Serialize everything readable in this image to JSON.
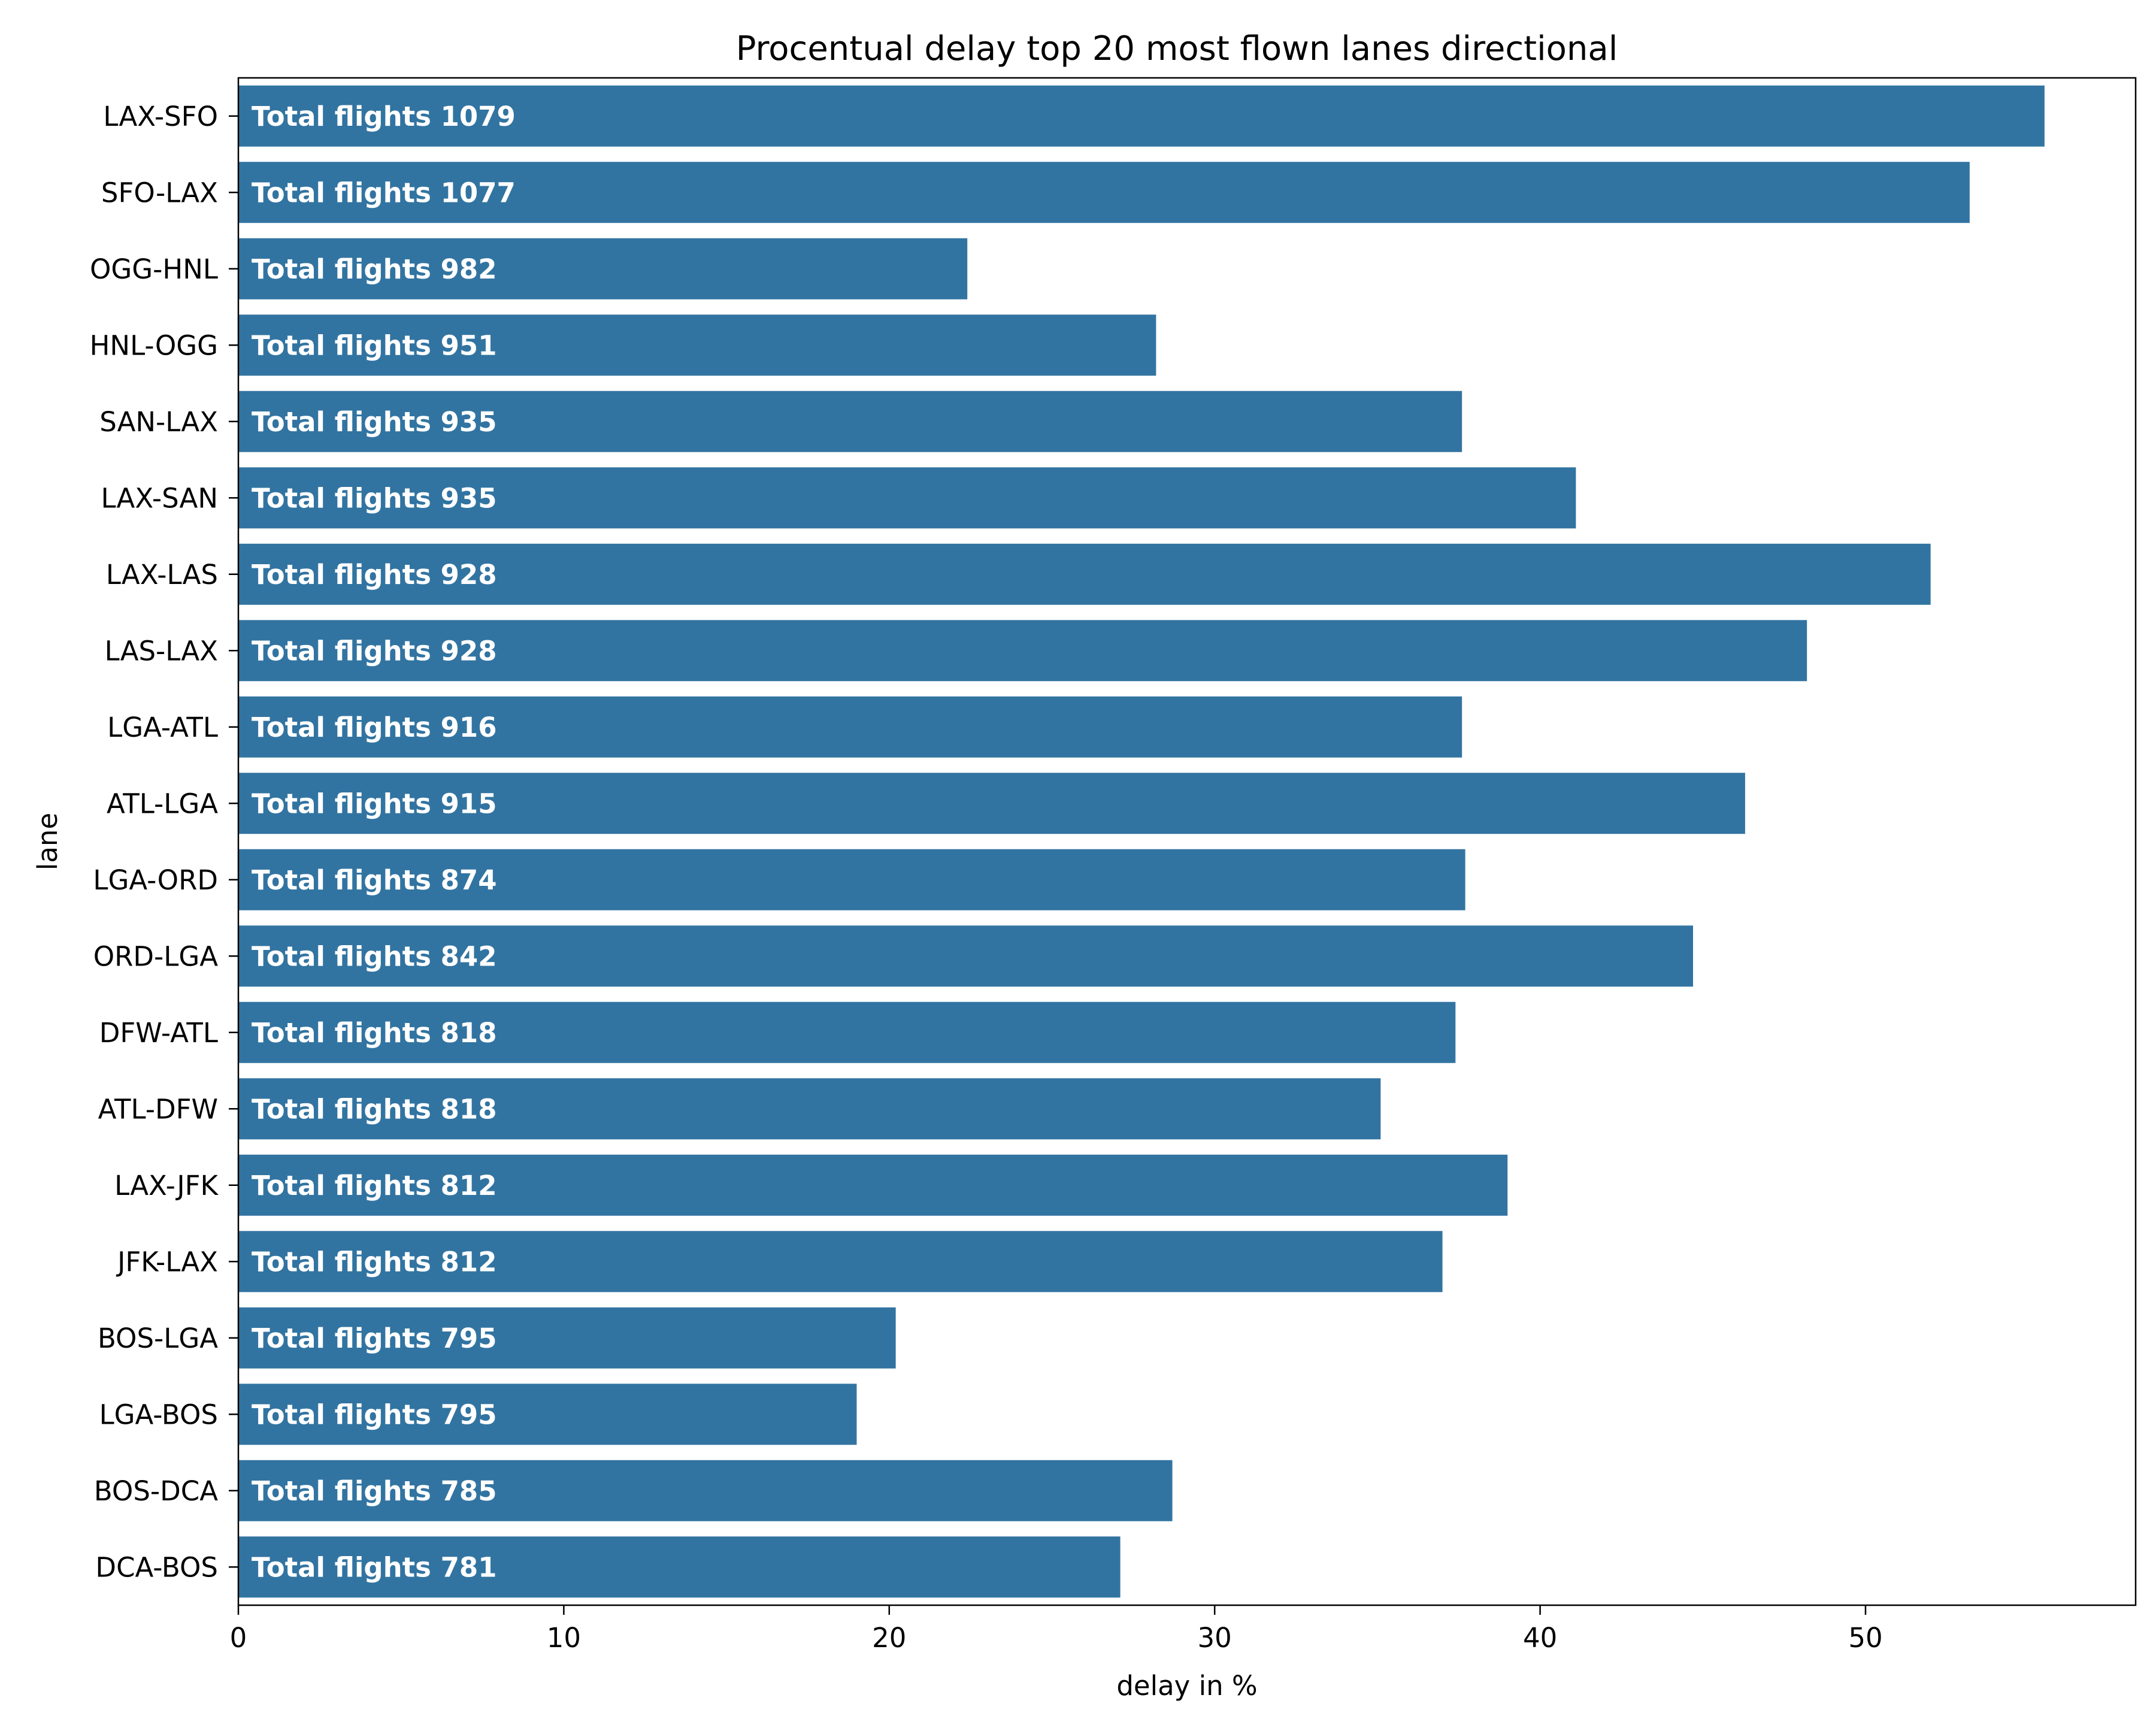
{
  "chart_data": {
    "type": "bar",
    "orientation": "horizontal",
    "title": "Procentual delay top 20 most flown lanes directional",
    "xlabel": "delay in %",
    "ylabel": "lane",
    "xlim": [
      0,
      58.3
    ],
    "xticks": [
      0,
      10,
      20,
      30,
      40,
      50
    ],
    "grid": false,
    "bar_color": "#3274a1",
    "categories": [
      "LAX-SFO",
      "SFO-LAX",
      "OGG-HNL",
      "HNL-OGG",
      "SAN-LAX",
      "LAX-SAN",
      "LAX-LAS",
      "LAS-LAX",
      "LGA-ATL",
      "ATL-LGA",
      "LGA-ORD",
      "ORD-LGA",
      "DFW-ATL",
      "ATL-DFW",
      "LAX-JFK",
      "JFK-LAX",
      "BOS-LGA",
      "LGA-BOS",
      "BOS-DCA",
      "DCA-BOS"
    ],
    "values": [
      55.5,
      53.2,
      22.4,
      28.2,
      37.6,
      41.1,
      52.0,
      48.2,
      37.6,
      46.3,
      37.7,
      44.7,
      37.4,
      35.1,
      39.0,
      37.0,
      20.2,
      19.0,
      28.7,
      27.1
    ],
    "bar_labels": [
      "Total flights 1079",
      "Total flights 1077",
      "Total flights 982",
      "Total flights 951",
      "Total flights 935",
      "Total flights 935",
      "Total flights 928",
      "Total flights 928",
      "Total flights 916",
      "Total flights 915",
      "Total flights 874",
      "Total flights 842",
      "Total flights 818",
      "Total flights 818",
      "Total flights 812",
      "Total flights 812",
      "Total flights 795",
      "Total flights 795",
      "Total flights 785",
      "Total flights 781"
    ]
  }
}
